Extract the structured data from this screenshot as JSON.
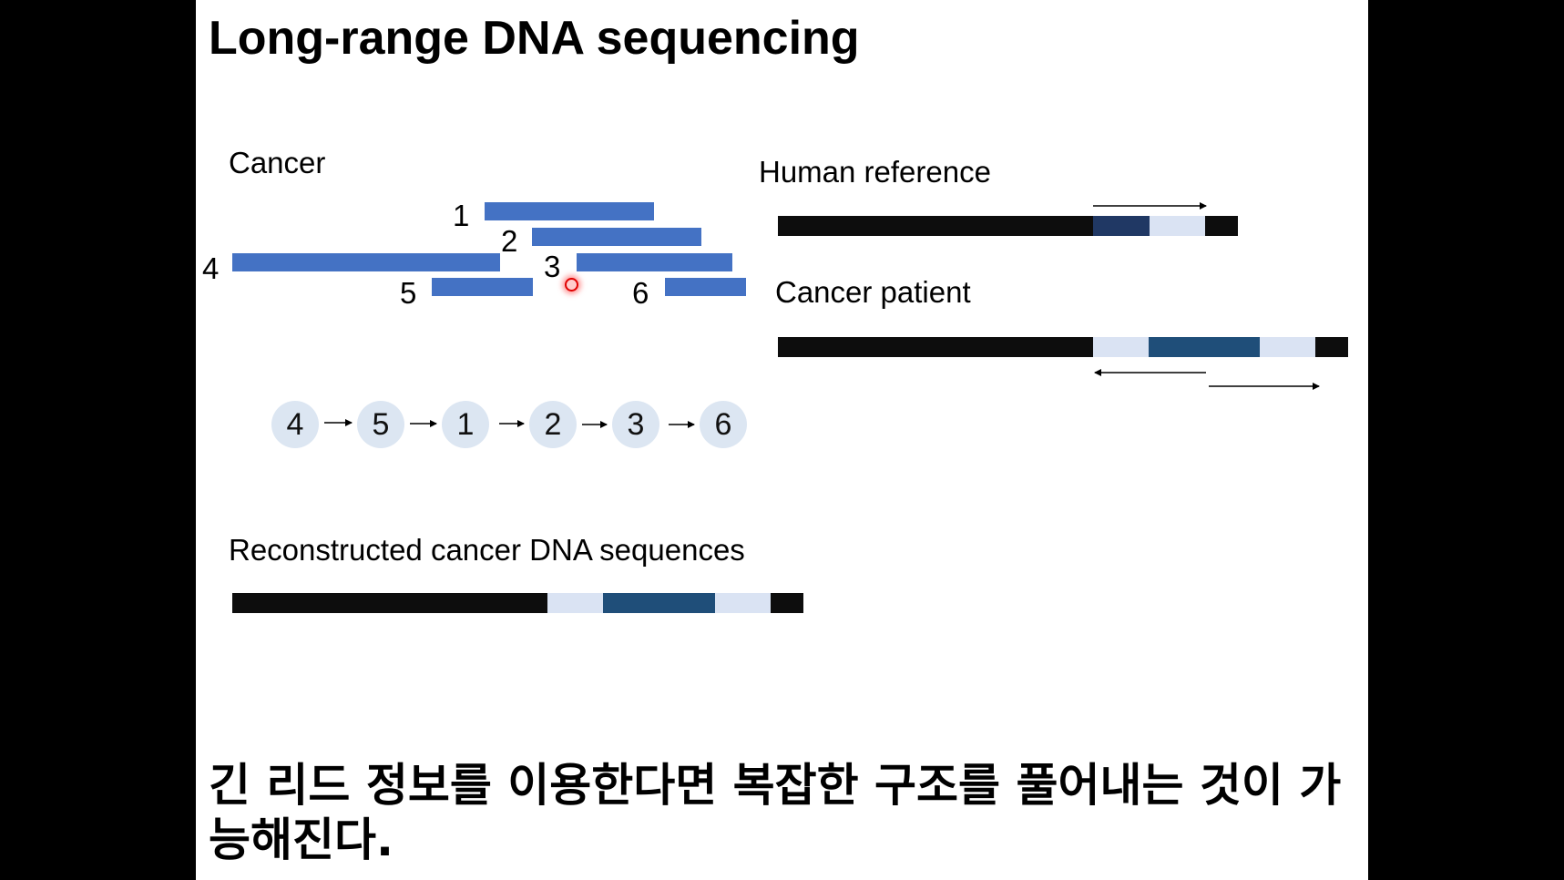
{
  "slide": {
    "title": "Long-range DNA sequencing",
    "caption": "긴 리드 정보를 이용한다면 복잡한 구조를 풀어내는 것이 가능해진다."
  },
  "left": {
    "cancer_label": "Cancer",
    "reads": [
      {
        "label": "1"
      },
      {
        "label": "2"
      },
      {
        "label": "3"
      },
      {
        "label": "4"
      },
      {
        "label": "5"
      },
      {
        "label": "6"
      }
    ],
    "order": [
      "4",
      "5",
      "1",
      "2",
      "3",
      "6"
    ],
    "reconstructed_label": "Reconstructed cancer DNA sequences"
  },
  "right": {
    "reference_label": "Human reference",
    "patient_label": "Cancer patient"
  },
  "colors": {
    "read": "#4472c4",
    "node": "#dce6f2",
    "black_segment": "#0d0d0d",
    "dark_navy_segment": "#203864",
    "dark_teal_segment": "#1f4e79",
    "light_segment": "#dae3f3",
    "laser_pointer": "#e00000"
  }
}
